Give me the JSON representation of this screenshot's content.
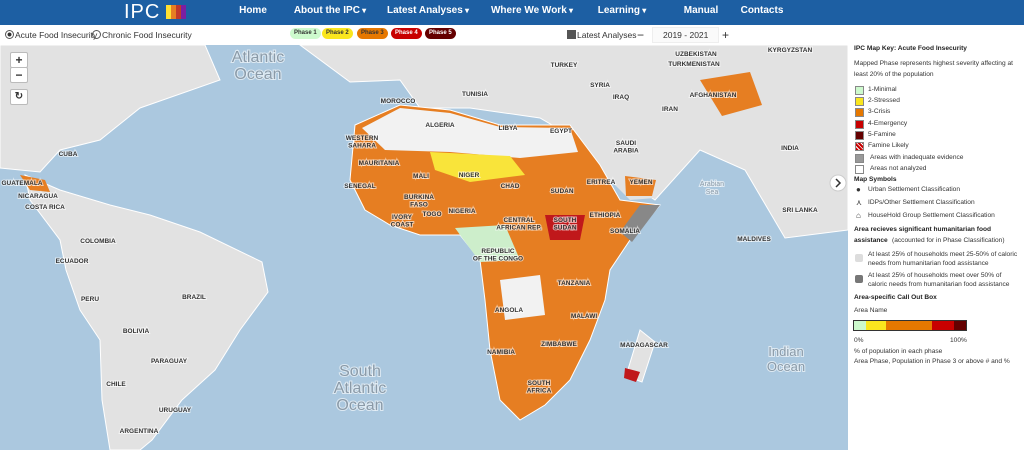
{
  "nav": {
    "logo": "IPC",
    "items": [
      "Home",
      "About the IPC",
      "Latest Analyses",
      "Where We Work",
      "Learning",
      "Manual",
      "Contacts"
    ]
  },
  "controls": {
    "options": [
      "Acute Food Insecurity",
      "Chronic Food Insecurity"
    ],
    "phases": [
      "Phase 1",
      "Phase 2",
      "Phase 3",
      "Phase 4",
      "Phase 5"
    ],
    "latest": "Latest Analyses",
    "minus": "−",
    "period": "2019 - 2021",
    "plus": "+"
  },
  "map": {
    "zoom_in": "+",
    "zoom_out": "−",
    "ocean_labels": [
      [
        "Atlantic",
        "Ocean"
      ],
      [
        "South",
        "Atlantic",
        "Ocean"
      ],
      [
        "Indian",
        "Ocean"
      ],
      [
        "Arabian",
        "Sea"
      ]
    ],
    "country_labels": [
      [
        "MOROCCO"
      ],
      [
        "TUNISIA"
      ],
      [
        "ALGERIA"
      ],
      [
        "LIBYA"
      ],
      [
        "EGYPT"
      ],
      [
        "WESTERN",
        "SAHARA"
      ],
      [
        "MAURITANIA"
      ],
      [
        "MALI"
      ],
      [
        "NIGER"
      ],
      [
        "CHAD"
      ],
      [
        "SUDAN"
      ],
      [
        "ERITREA"
      ],
      [
        "YEMEN"
      ],
      [
        "SENEGAL"
      ],
      [
        "BURKINA",
        "FASO"
      ],
      [
        "NIGERIA"
      ],
      [
        "IVORY",
        "COAST"
      ],
      [
        "TOGO"
      ],
      [
        "ETHIOPIA"
      ],
      [
        "SOUTH",
        "SUDAN"
      ],
      [
        "CENTRAL",
        "AFRICAN REP."
      ],
      [
        "SOMALIA"
      ],
      [
        "REPUBLIC",
        "OF THE CONGO"
      ],
      [
        "TANZANIA"
      ],
      [
        "ANGOLA"
      ],
      [
        "MALAWI"
      ],
      [
        "ZIMBABWE"
      ],
      [
        "NAMIBIA"
      ],
      [
        "MADAGASCAR"
      ],
      [
        "SOUTH",
        "AFRICA"
      ],
      [
        "SAUDI",
        "ARABIA"
      ],
      [
        "SYRIA"
      ],
      [
        "IRAQ"
      ],
      [
        "IRAN"
      ],
      [
        "TURKEY"
      ],
      [
        "AFGHANISTAN"
      ],
      [
        "UZBEKISTAN"
      ],
      [
        "TURKMENISTAN"
      ],
      [
        "KYRGYZSTAN"
      ],
      [
        "INDIA"
      ],
      [
        "MALDIVES"
      ],
      [
        "SRI LANKA"
      ],
      [
        "CUBA"
      ],
      [
        "GUATEMALA"
      ],
      [
        "NICARAGUA"
      ],
      [
        "COSTA RICA"
      ],
      [
        "COLOMBIA"
      ],
      [
        "ECUADOR"
      ],
      [
        "PERU"
      ],
      [
        "BRAZIL"
      ],
      [
        "BOLIVIA"
      ],
      [
        "PARAGUAY"
      ],
      [
        "CHILE"
      ],
      [
        "URUGUAY"
      ],
      [
        "ARGENTINA"
      ]
    ]
  },
  "legend": {
    "title": "IPC Map Key: Acute Food Insecurity",
    "description": [
      "Mapped Phase represents highest severity affecting at",
      "least 20% of the population"
    ],
    "phases": [
      "1-Minimal",
      "2-Stressed",
      "3-Crisis",
      "4-Emergency",
      "5-Famine",
      "Famine Likely",
      "Areas with inadequate evidence",
      "Areas not analyzed"
    ],
    "symbols_title": "Map Symbols",
    "symbols": [
      "Urban Settlement Classification",
      "IDPs/Other Settlement Classification",
      "HouseHold Group Settlement Classification"
    ],
    "assistance_heading": [
      "Area recieves significant humanitarian food",
      "assistance"
    ],
    "assistance_note": "(accounted for in Phase Classification)",
    "assistance_items": [
      [
        "At least 25% of households meet 25-50% of caloric",
        "needs from humanitarian food assistance"
      ],
      [
        "At least 25% of households meet over 50% of",
        "caloric needs from humanitarian food assistance"
      ]
    ],
    "callout_title": "Area-specific Call Out Box",
    "callout_area": "Area Name",
    "scale_min": "0%",
    "scale_max": "100%",
    "scale_caption": "% of population in each phase",
    "callout_note": "Area Phase, Population in Phase 3 or above # and %"
  }
}
